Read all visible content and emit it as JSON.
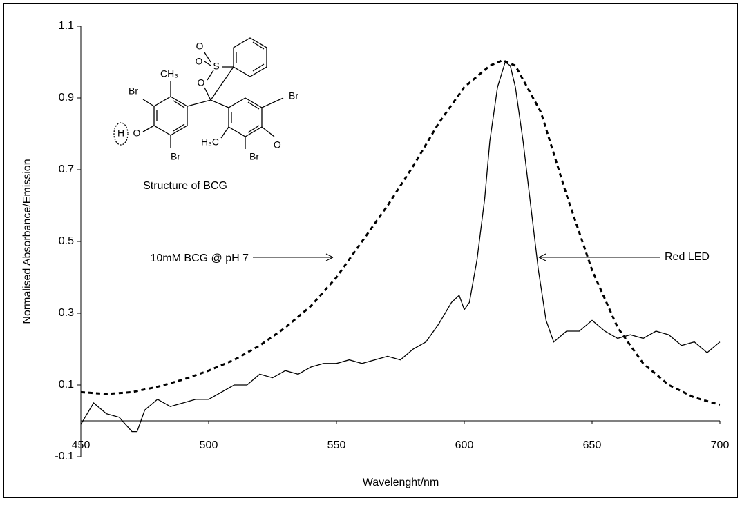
{
  "chart_data": {
    "type": "line",
    "xlabel": "Wavelenght/nm",
    "ylabel": "Normalised Absorbance/Emission",
    "xlim": [
      450,
      700
    ],
    "ylim": [
      -0.1,
      1.1
    ],
    "xticks": [
      450,
      500,
      550,
      600,
      650,
      700
    ],
    "yticks": [
      1.1,
      0.9,
      0.7,
      0.5,
      0.3,
      0.1,
      -0.1
    ],
    "annotations": [
      "10mM BCG @ pH 7",
      "Red LED"
    ],
    "structure": {
      "title": "Structure of BCG",
      "labels": [
        "O",
        "O",
        "S",
        "CH₃",
        "O",
        "Br",
        "H",
        "O",
        "Br",
        "H₃C",
        "Br",
        "O⁻",
        "Br"
      ]
    },
    "series": [
      {
        "color": "#000",
        "dashed": true,
        "x": [
          450,
          460,
          470,
          480,
          490,
          500,
          510,
          520,
          530,
          540,
          550,
          560,
          570,
          580,
          590,
          600,
          610,
          615,
          620,
          630,
          640,
          650,
          660,
          670,
          680,
          690,
          700
        ],
        "values": [
          0.08,
          0.075,
          0.08,
          0.095,
          0.115,
          0.14,
          0.17,
          0.21,
          0.26,
          0.32,
          0.4,
          0.5,
          0.6,
          0.71,
          0.83,
          0.93,
          0.99,
          1.005,
          0.99,
          0.86,
          0.63,
          0.42,
          0.26,
          0.16,
          0.1,
          0.065,
          0.045
        ]
      },
      {
        "color": "#000",
        "dashed": false,
        "x": [
          450,
          455,
          460,
          465,
          470,
          472,
          475,
          480,
          485,
          490,
          495,
          500,
          505,
          510,
          515,
          520,
          525,
          530,
          535,
          540,
          545,
          550,
          555,
          560,
          565,
          570,
          575,
          580,
          585,
          590,
          595,
          598,
          600,
          602,
          605,
          608,
          610,
          613,
          616,
          618,
          620,
          623,
          626,
          629,
          632,
          635,
          640,
          645,
          650,
          655,
          660,
          665,
          670,
          675,
          680,
          685,
          690,
          695,
          700
        ],
        "values": [
          -0.01,
          0.05,
          0.02,
          0.01,
          -0.03,
          -0.03,
          0.03,
          0.06,
          0.04,
          0.05,
          0.06,
          0.06,
          0.08,
          0.1,
          0.1,
          0.13,
          0.12,
          0.14,
          0.13,
          0.15,
          0.16,
          0.16,
          0.17,
          0.16,
          0.17,
          0.18,
          0.17,
          0.2,
          0.22,
          0.27,
          0.33,
          0.35,
          0.31,
          0.33,
          0.45,
          0.62,
          0.78,
          0.93,
          1.0,
          0.99,
          0.93,
          0.78,
          0.6,
          0.42,
          0.28,
          0.22,
          0.25,
          0.25,
          0.28,
          0.25,
          0.23,
          0.24,
          0.23,
          0.25,
          0.24,
          0.21,
          0.22,
          0.19,
          0.22
        ]
      }
    ]
  }
}
